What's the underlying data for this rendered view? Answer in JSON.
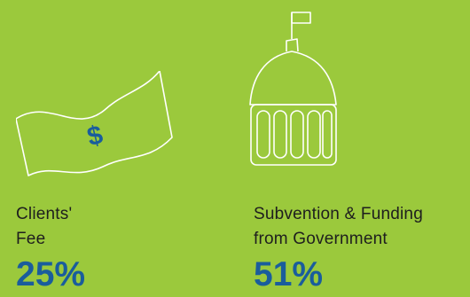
{
  "colors": {
    "background": "#9bc93c",
    "icon_stroke": "#ffffff",
    "text": "#1e1e1e",
    "accent": "#1a5d9c"
  },
  "items": [
    {
      "icon": "money-icon",
      "currency_symbol": "$",
      "label_line1": "Clients'",
      "label_line2": "Fee",
      "percent": "25%"
    },
    {
      "icon": "capitol-dome-icon",
      "label_line1": "Subvention & Funding",
      "label_line2": "from Government",
      "percent": "51%"
    }
  ]
}
